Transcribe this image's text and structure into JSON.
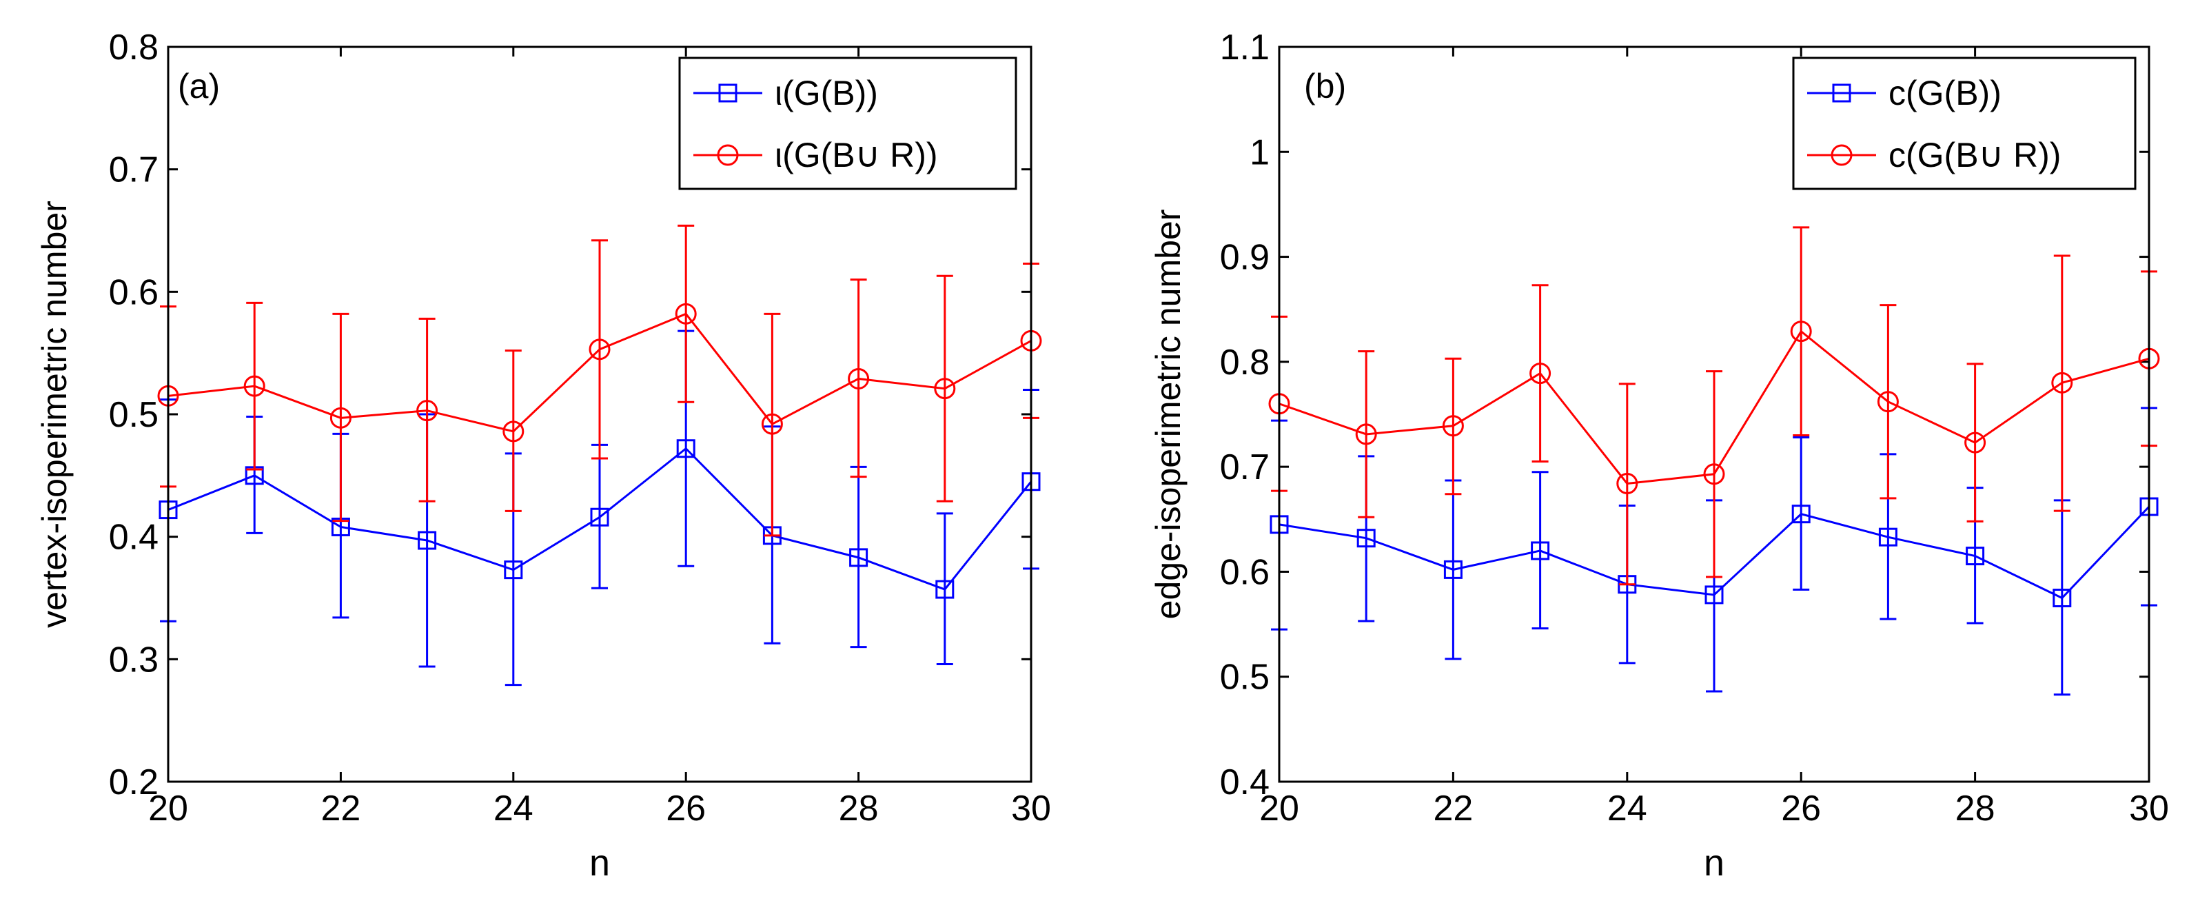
{
  "chart_data": [
    {
      "type": "line",
      "panel_label": "(a)",
      "xlabel": "n",
      "ylabel": "vertex-isoperimetric number",
      "xlim": [
        20,
        30
      ],
      "ylim": [
        0.2,
        0.8
      ],
      "xticks": [
        20,
        22,
        24,
        26,
        28,
        30
      ],
      "xtick_labels": [
        "20",
        "22",
        "24",
        "26",
        "28",
        "30"
      ],
      "yticks": [
        0.2,
        0.3,
        0.4,
        0.5,
        0.6,
        0.7,
        0.8
      ],
      "ytick_labels": [
        "0.2",
        "0.3",
        "0.4",
        "0.5",
        "0.6",
        "0.7",
        "0.8"
      ],
      "grid": false,
      "legend_position": "top-right",
      "x": [
        20,
        21,
        22,
        23,
        24,
        25,
        26,
        27,
        28,
        29,
        30
      ],
      "series": [
        {
          "name": "ι(G(B))",
          "color": "#0000ff",
          "marker": "square",
          "values": [
            0.422,
            0.45,
            0.408,
            0.397,
            0.373,
            0.416,
            0.472,
            0.401,
            0.383,
            0.357,
            0.445
          ],
          "err_low": [
            0.331,
            0.403,
            0.334,
            0.294,
            0.279,
            0.358,
            0.376,
            0.313,
            0.31,
            0.296,
            0.374
          ],
          "err_high": [
            0.512,
            0.498,
            0.484,
            0.5,
            0.468,
            0.475,
            0.568,
            0.49,
            0.457,
            0.419,
            0.52
          ]
        },
        {
          "name": "ι(G(B∪ R))",
          "color": "#ff0000",
          "marker": "circle",
          "values": [
            0.515,
            0.523,
            0.497,
            0.503,
            0.486,
            0.553,
            0.582,
            0.492,
            0.529,
            0.521,
            0.56
          ],
          "err_low": [
            0.441,
            0.455,
            0.413,
            0.429,
            0.421,
            0.464,
            0.51,
            0.401,
            0.449,
            0.429,
            0.497
          ],
          "err_high": [
            0.588,
            0.591,
            0.582,
            0.578,
            0.552,
            0.642,
            0.654,
            0.582,
            0.61,
            0.613,
            0.623
          ]
        }
      ]
    },
    {
      "type": "line",
      "panel_label": "(b)",
      "xlabel": "n",
      "ylabel": "edge-isoperimetric number",
      "xlim": [
        20,
        30
      ],
      "ylim": [
        0.4,
        1.1
      ],
      "xticks": [
        20,
        22,
        24,
        26,
        28,
        30
      ],
      "xtick_labels": [
        "20",
        "22",
        "24",
        "26",
        "28",
        "30"
      ],
      "yticks": [
        0.4,
        0.5,
        0.6,
        0.7,
        0.8,
        0.9,
        1.0,
        1.1
      ],
      "ytick_labels": [
        "0.4",
        "0.5",
        "0.6",
        "0.7",
        "0.8",
        "0.9",
        "1",
        "1.1"
      ],
      "grid": false,
      "legend_position": "top-right",
      "x": [
        20,
        21,
        22,
        23,
        24,
        25,
        26,
        27,
        28,
        29,
        30
      ],
      "series": [
        {
          "name": "c(G(B))",
          "color": "#0000ff",
          "marker": "square",
          "values": [
            0.645,
            0.632,
            0.602,
            0.62,
            0.588,
            0.578,
            0.655,
            0.633,
            0.615,
            0.575,
            0.662
          ],
          "err_low": [
            0.545,
            0.553,
            0.517,
            0.546,
            0.513,
            0.486,
            0.583,
            0.555,
            0.551,
            0.483,
            0.568
          ],
          "err_high": [
            0.744,
            0.71,
            0.687,
            0.695,
            0.663,
            0.668,
            0.728,
            0.712,
            0.68,
            0.668,
            0.756
          ]
        },
        {
          "name": "c(G(B∪ R))",
          "color": "#ff0000",
          "marker": "circle",
          "values": [
            0.76,
            0.731,
            0.739,
            0.789,
            0.684,
            0.693,
            0.829,
            0.762,
            0.723,
            0.78,
            0.803
          ],
          "err_low": [
            0.677,
            0.652,
            0.674,
            0.705,
            0.588,
            0.595,
            0.73,
            0.67,
            0.648,
            0.658,
            0.72
          ],
          "err_high": [
            0.843,
            0.81,
            0.803,
            0.873,
            0.779,
            0.791,
            0.928,
            0.854,
            0.798,
            0.901,
            0.886
          ]
        }
      ]
    }
  ]
}
